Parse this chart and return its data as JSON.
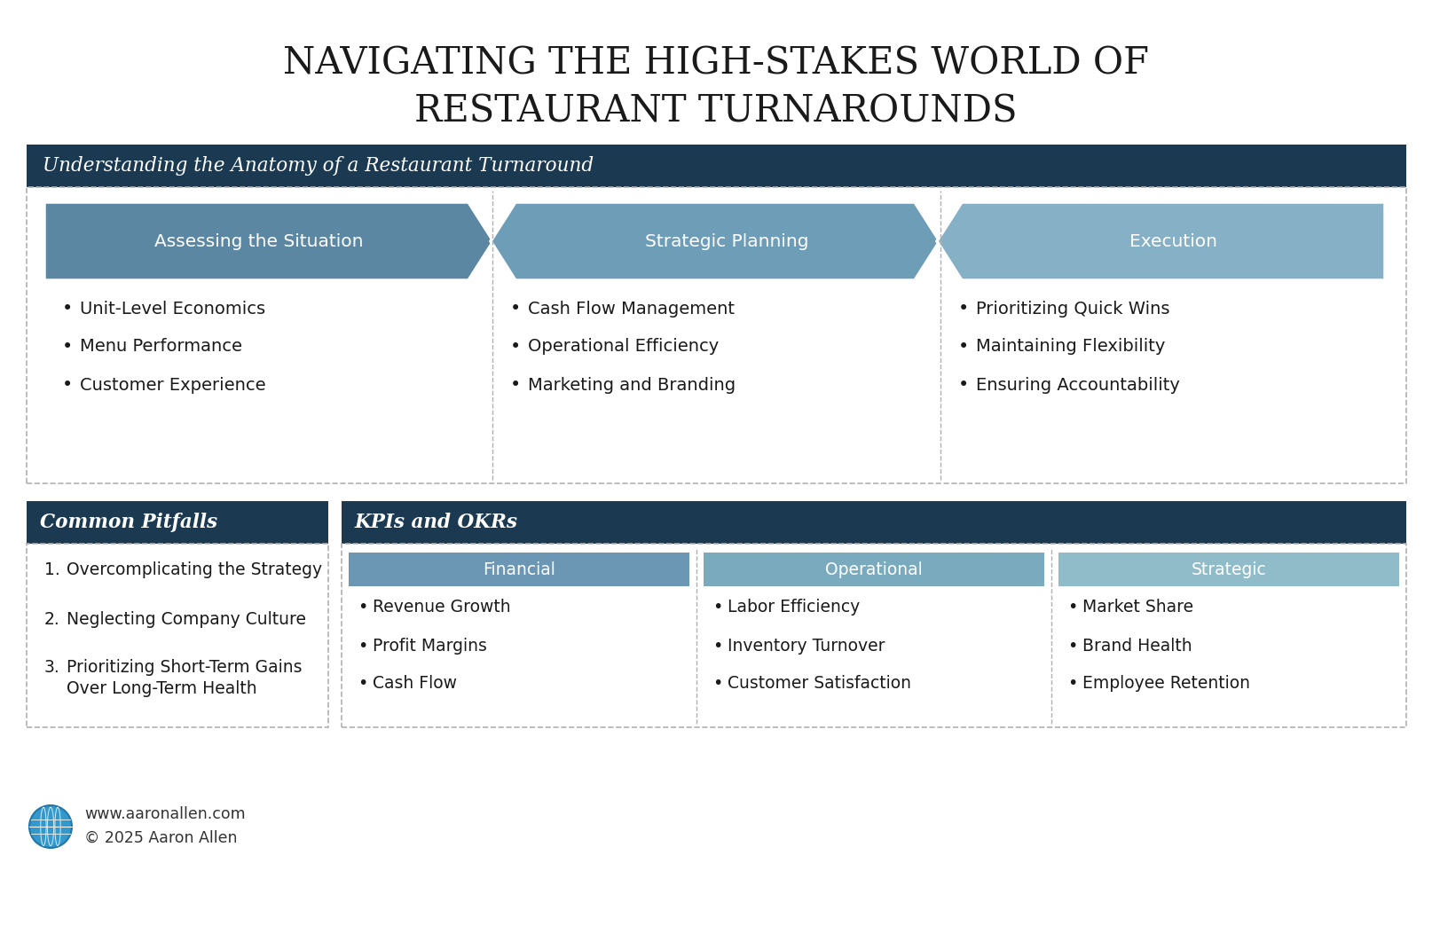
{
  "title_line1": "NAVIGATING THE HIGH-STAKES WORLD OF",
  "title_line2": "RESTAURANT TURNAROUNDS",
  "bg_color": "#ffffff",
  "dark_navy": "#1b3a52",
  "section1_header": "Understanding the Anatomy of a Restaurant Turnaround",
  "arrow_labels": [
    "Assessing the Situation",
    "Strategic Planning",
    "Execution"
  ],
  "arrow_colors": [
    "#5b87a3",
    "#6e9db8",
    "#85b0c5"
  ],
  "bullet_columns": [
    [
      "Unit-Level Economics",
      "Menu Performance",
      "Customer Experience"
    ],
    [
      "Cash Flow Management",
      "Operational Efficiency",
      "Marketing and Branding"
    ],
    [
      "Prioritizing Quick Wins",
      "Maintaining Flexibility",
      "Ensuring Accountability"
    ]
  ],
  "pitfalls_header": "Common Pitfalls",
  "pitfalls_items": [
    "Overcomplicating the Strategy",
    "Neglecting Company Culture",
    "Prioritizing Short-Term Gains\nOver Long-Term Health"
  ],
  "kpi_header": "KPIs and OKRs",
  "kpi_sub_headers": [
    "Financial",
    "Operational",
    "Strategic"
  ],
  "kpi_sub_colors": [
    "#6b97b5",
    "#7aaabe",
    "#8fbcc8"
  ],
  "kpi_items": [
    [
      "Revenue Growth",
      "Profit Margins",
      "Cash Flow"
    ],
    [
      "Labor Efficiency",
      "Inventory Turnover",
      "Customer Satisfaction"
    ],
    [
      "Market Share",
      "Brand Health",
      "Employee Retention"
    ]
  ],
  "footer_website": "www.aaronallen.com",
  "footer_copyright": "© 2025 Aaron Allen",
  "dashed_border_color": "#b0b0b0",
  "text_dark": "#1a1a1a"
}
